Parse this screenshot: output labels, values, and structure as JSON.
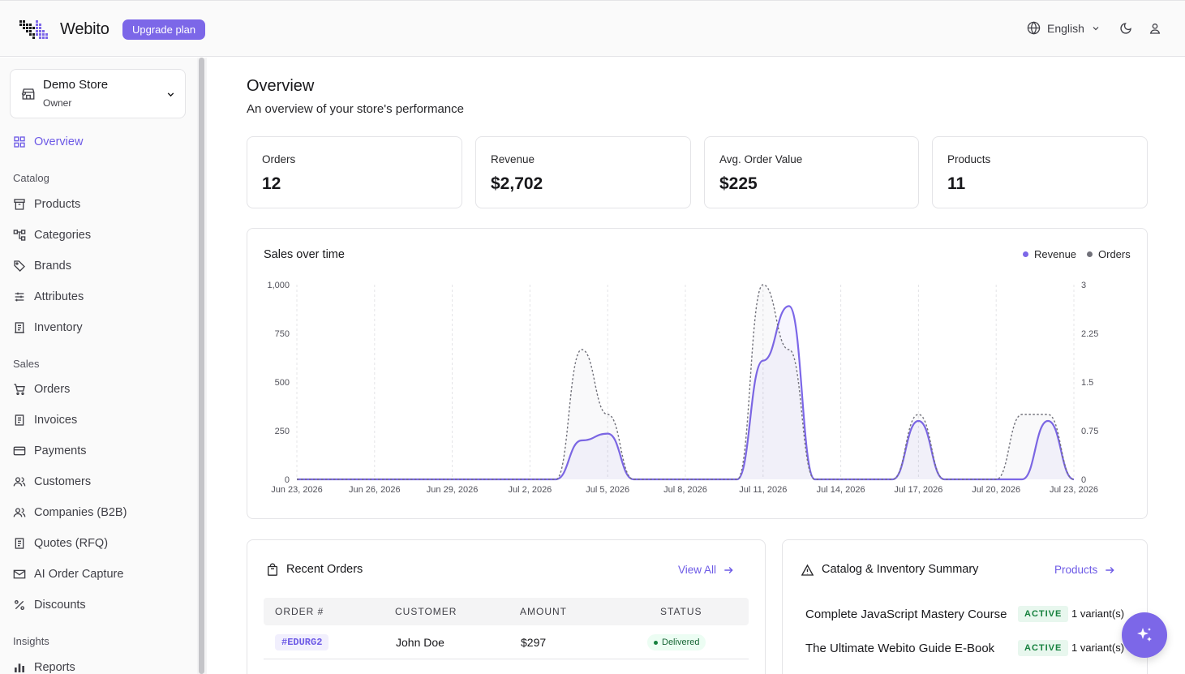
{
  "app": {
    "name": "Webito",
    "upgrade_label": "Upgrade plan",
    "language": "English"
  },
  "store": {
    "name": "Demo Store",
    "role": "Owner"
  },
  "sidebar": {
    "overview": "Overview",
    "catalog_heading": "Catalog",
    "catalog": [
      "Products",
      "Categories",
      "Brands",
      "Attributes",
      "Inventory"
    ],
    "sales_heading": "Sales",
    "sales": [
      "Orders",
      "Invoices",
      "Payments",
      "Customers",
      "Companies (B2B)",
      "Quotes (RFQ)",
      "AI Order Capture",
      "Discounts"
    ],
    "insights_heading": "Insights",
    "insights": [
      "Reports"
    ]
  },
  "page": {
    "title": "Overview",
    "subtitle": "An overview of your store's performance"
  },
  "stats": [
    {
      "label": "Orders",
      "value": "12"
    },
    {
      "label": "Revenue",
      "value": "$2,702"
    },
    {
      "label": "Avg. Order Value",
      "value": "$225"
    },
    {
      "label": "Products",
      "value": "11"
    }
  ],
  "chart_data": {
    "type": "area",
    "title": "Sales over time",
    "legend": [
      "Revenue",
      "Orders"
    ],
    "legend_position": "top-right",
    "x": [
      "Jun 23, 2026",
      "Jun 24, 2026",
      "Jun 25, 2026",
      "Jun 26, 2026",
      "Jun 27, 2026",
      "Jun 28, 2026",
      "Jun 29, 2026",
      "Jun 30, 2026",
      "Jul 1, 2026",
      "Jul 2, 2026",
      "Jul 3, 2026",
      "Jul 4, 2026",
      "Jul 5, 2026",
      "Jul 6, 2026",
      "Jul 7, 2026",
      "Jul 8, 2026",
      "Jul 9, 2026",
      "Jul 10, 2026",
      "Jul 11, 2026",
      "Jul 12, 2026",
      "Jul 13, 2026",
      "Jul 14, 2026",
      "Jul 15, 2026",
      "Jul 16, 2026",
      "Jul 17, 2026",
      "Jul 18, 2026",
      "Jul 19, 2026",
      "Jul 20, 2026",
      "Jul 21, 2026",
      "Jul 22, 2026",
      "Jul 23, 2026"
    ],
    "x_tick_labels": [
      "Jun 23, 2026",
      "Jun 26, 2026",
      "Jun 29, 2026",
      "Jul 2, 2026",
      "Jul 5, 2026",
      "Jul 8, 2026",
      "Jul 11, 2026",
      "Jul 14, 2026",
      "Jul 17, 2026",
      "Jul 20, 2026",
      "Jul 23, 2026"
    ],
    "series": [
      {
        "name": "Revenue",
        "axis": "left",
        "color": "#7c67e8",
        "values": [
          0,
          0,
          0,
          0,
          0,
          0,
          0,
          0,
          0,
          0,
          0,
          200,
          235,
          0,
          0,
          0,
          0,
          0,
          610,
          890,
          0,
          0,
          0,
          0,
          300,
          0,
          0,
          0,
          0,
          300,
          0
        ]
      },
      {
        "name": "Orders",
        "axis": "right",
        "color": "#71717a",
        "style": "dashed",
        "values": [
          0,
          0,
          0,
          0,
          0,
          0,
          0,
          0,
          0,
          0,
          0,
          2,
          1,
          0,
          0,
          0,
          0,
          0,
          3,
          2,
          0,
          0,
          0,
          0,
          1,
          0,
          0,
          0,
          1,
          1,
          0
        ]
      }
    ],
    "y_left": {
      "ticks": [
        "0",
        "250",
        "500",
        "750",
        "1,000"
      ],
      "range": [
        0,
        1000
      ]
    },
    "y_right": {
      "ticks": [
        "0",
        "0.75",
        "1.5",
        "2.25",
        "3"
      ],
      "range": [
        0,
        3
      ]
    },
    "grid": "vertical dashed"
  },
  "recent_orders": {
    "title": "Recent Orders",
    "view_all": "View All",
    "columns": [
      "ORDER #",
      "CUSTOMER",
      "AMOUNT",
      "STATUS"
    ],
    "rows": [
      {
        "order": "#EDURG2",
        "customer": "John Doe",
        "amount": "$297",
        "status": "Delivered"
      }
    ]
  },
  "catalog_summary": {
    "title": "Catalog & Inventory Summary",
    "link": "Products",
    "items": [
      {
        "name": "Complete JavaScript Mastery Course",
        "status": "ACTIVE",
        "variants": "1 variant(s)"
      },
      {
        "name": "The Ultimate Webito Guide E-Book",
        "status": "ACTIVE",
        "variants": "1 variant(s)"
      }
    ]
  },
  "colors": {
    "accent": "#7c67e8",
    "success": "#15803d",
    "muted": "#71717a"
  }
}
